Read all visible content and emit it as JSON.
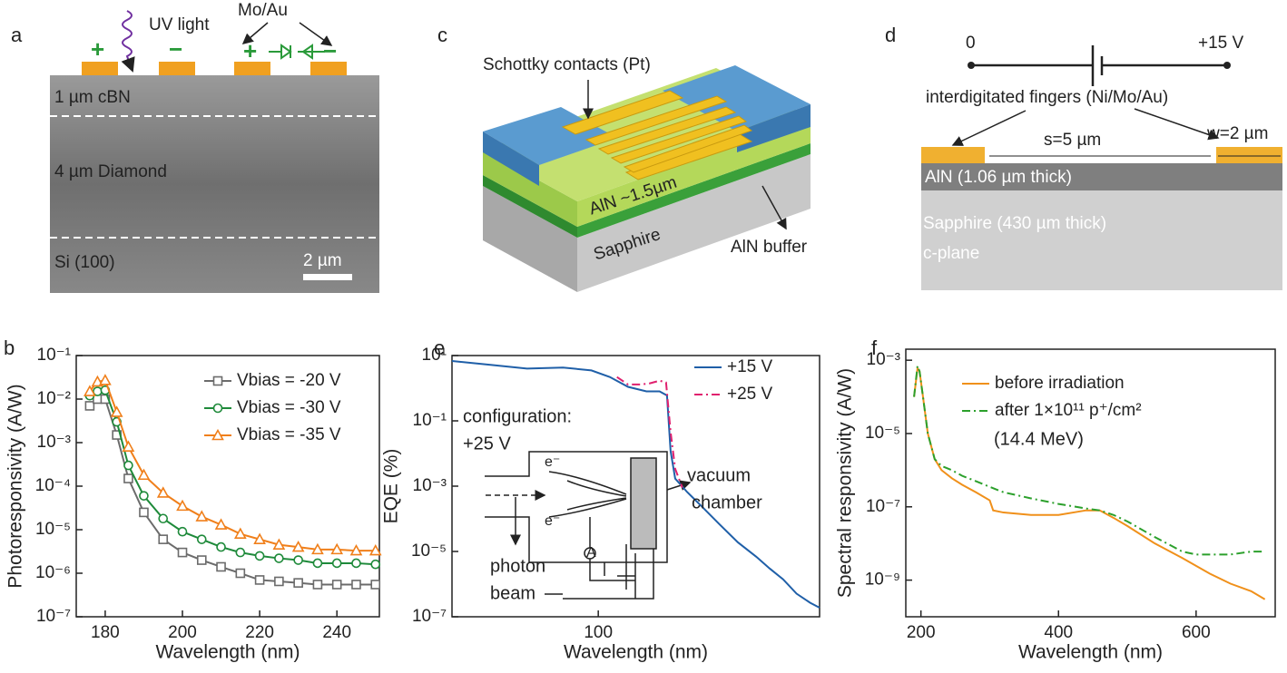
{
  "panel_a": {
    "label": "a",
    "texts": [
      "UV light",
      "Mo/Au",
      "+",
      "−",
      "+",
      "−",
      "1 µm cBN",
      "4 µm Diamond",
      "Si (100)",
      "2 µm"
    ]
  },
  "panel_c": {
    "label": "c",
    "texts": [
      "Schottky contacts (Pt)",
      "AlN ~1.5µm",
      "Sapphire",
      "AlN buffer"
    ]
  },
  "panel_d": {
    "label": "d",
    "texts": [
      "0",
      "+15 V",
      "interdigitated fingers (Ni/Mo/Au)",
      "s=5 µm",
      "w=2 µm",
      "AlN (1.06 µm thick)",
      "Sapphire (430 µm thick)",
      "c-plane"
    ]
  },
  "chart_data": [
    {
      "type": "line",
      "panel_label": "b",
      "x_label": "Wavelength (nm)",
      "y_label": "Photoresponsivity (A/W)",
      "yscale": "log",
      "legend": "upper right",
      "x": [
        176,
        178,
        180,
        183,
        186,
        190,
        195,
        200,
        205,
        210,
        215,
        220,
        225,
        230,
        235,
        240,
        245,
        250
      ],
      "series": [
        {
          "name": "Vbias = -20 V",
          "color": "#6b6b6b",
          "marker": "square",
          "values": [
            0.007,
            0.01,
            0.01,
            0.0015,
            0.00015,
            2.5e-05,
            6e-06,
            3e-06,
            2e-06,
            1.4e-06,
            1e-06,
            7e-07,
            6.5e-07,
            6e-07,
            5.5e-07,
            5.5e-07,
            5.5e-07,
            5.5e-07
          ]
        },
        {
          "name": "Vbias = -30 V",
          "color": "#1e8a3a",
          "marker": "circle",
          "values": [
            0.012,
            0.015,
            0.016,
            0.003,
            0.0003,
            6e-05,
            1.8e-05,
            9e-06,
            6e-06,
            4e-06,
            3e-06,
            2.5e-06,
            2.2e-06,
            2e-06,
            1.7e-06,
            1.7e-06,
            1.7e-06,
            1.6e-06
          ]
        },
        {
          "name": "Vbias = -35 V",
          "color": "#f07f1a",
          "marker": "triangle",
          "values": [
            0.015,
            0.025,
            0.027,
            0.005,
            0.0008,
            0.00018,
            7e-05,
            3.5e-05,
            2e-05,
            1.3e-05,
            8e-06,
            6e-06,
            4.5e-06,
            4e-06,
            3.5e-06,
            3.5e-06,
            3.3e-06,
            3.3e-06
          ]
        }
      ],
      "xlim": [
        172.5,
        251
      ],
      "ylim": [
        1e-07,
        0.1
      ],
      "xticks": [
        180,
        200,
        220,
        240
      ],
      "yticks": [
        {
          "value": 1e-07,
          "label": "10⁻⁷"
        },
        {
          "value": 1e-06,
          "label": "10⁻⁶"
        },
        {
          "value": 1e-05,
          "label": "10⁻⁵"
        },
        {
          "value": 0.0001,
          "label": "10⁻⁴"
        },
        {
          "value": 0.001,
          "label": "10⁻³"
        },
        {
          "value": 0.01,
          "label": "10⁻²"
        },
        {
          "value": 0.1,
          "label": "10⁻¹"
        }
      ]
    },
    {
      "type": "line",
      "panel_label": "e",
      "x_label": "Wavelength (nm)",
      "y_label": "EQE (%)",
      "xscale": "log",
      "yscale": "log",
      "legend": "upper right",
      "series": [
        {
          "name": "+15 V",
          "color": "#1f5fa8",
          "x": [
            40,
            50.9,
            64,
            80.2,
            95.8,
            107.5,
            120.5,
            135.2,
            146.8,
            153.8,
            157.3,
            161.9,
            174.5,
            190.5,
            213.7,
            239.8,
            269,
            292.7,
            318.3,
            346.3,
            376.8,
            400
          ],
          "values": [
            6.8,
            5.2,
            4,
            4.3,
            3.5,
            2.2,
            1.1,
            0.8,
            0.8,
            0.6,
            0.012,
            0.0017,
            0.00066,
            0.00025,
            6.8e-05,
            1.9e-05,
            6.9e-06,
            3e-06,
            1.4e-06,
            5.1e-07,
            2.7e-07,
            1.9e-07
          ]
        },
        {
          "name": "+25 V",
          "color": "#e0206e",
          "dash": "dashdot",
          "x": [
            112.4,
            120.5,
            130.8,
            137.8,
            146.8,
            152.9,
            157.3,
            161.9,
            169.3
          ],
          "values": [
            2.2,
            1.3,
            1.3,
            1.4,
            1.7,
            1.5,
            0.046,
            0.0034,
            0.0009
          ]
        }
      ],
      "xlim": [
        40,
        400
      ],
      "ylim": [
        1e-07,
        10
      ],
      "xticks": [
        100
      ],
      "yticks": [
        {
          "value": 1e-07,
          "label": "10⁻⁷"
        },
        {
          "value": 1e-05,
          "label": "10⁻⁵"
        },
        {
          "value": 0.001,
          "label": "10⁻³"
        },
        {
          "value": 0.1,
          "label": "10⁻¹"
        },
        {
          "value": 10,
          "label": "10¹"
        }
      ],
      "annotations": [
        "configuration:",
        "+25 V",
        "e⁻",
        "e⁻",
        "A",
        "vacuum",
        "chamber",
        "photon",
        "beam"
      ]
    },
    {
      "type": "line",
      "panel_label": "f",
      "x_label": "Wavelength (nm)",
      "y_label": "Spectral responsivity (A/W)",
      "yscale": "log",
      "legend": "upper right",
      "series": [
        {
          "name": "before irradiation",
          "color": "#f0901a",
          "x": [
            190,
            195,
            198,
            203,
            210,
            220,
            230,
            245,
            260,
            280,
            300,
            305,
            320,
            360,
            400,
            440,
            460,
            480,
            500,
            540,
            580,
            620,
            650,
            680,
            700
          ],
          "values": [
            0.0001,
            0.0006,
            0.0005,
            0.0001,
            1e-05,
            2e-06,
            1e-06,
            6e-07,
            4e-07,
            2.5e-07,
            1.5e-07,
            8e-08,
            7e-08,
            6e-08,
            6e-08,
            8e-08,
            8e-08,
            5e-08,
            3e-08,
            1e-08,
            4e-09,
            1.5e-09,
            8e-10,
            5e-10,
            3e-10
          ]
        },
        {
          "name": "after 1×10¹¹ p⁺/cm²",
          "color": "#2ca02c",
          "dash": "dashdot",
          "x": [
            190,
            195,
            198,
            203,
            210,
            220,
            230,
            245,
            260,
            280,
            300,
            320,
            360,
            400,
            440,
            460,
            480,
            500,
            540,
            580,
            600,
            620,
            650,
            680,
            700
          ],
          "values": [
            0.0001,
            0.0007,
            0.0005,
            0.0001,
            1e-05,
            2e-06,
            1.3e-06,
            1e-06,
            7e-07,
            5e-07,
            3.5e-07,
            2.5e-07,
            1.7e-07,
            1.2e-07,
            9e-08,
            8e-08,
            6e-08,
            4e-08,
            1.5e-08,
            6e-09,
            5e-09,
            5e-09,
            5e-09,
            6e-09,
            6e-09
          ]
        }
      ],
      "xlim": [
        178,
        715
      ],
      "ylim": [
        1e-10,
        0.002
      ],
      "xticks": [
        200,
        400,
        600
      ],
      "yticks": [
        {
          "value": 1e-09,
          "label": "10⁻⁹"
        },
        {
          "value": 1e-07,
          "label": "10⁻⁷"
        },
        {
          "value": 1e-05,
          "label": "10⁻⁵"
        },
        {
          "value": 0.001,
          "label": "10⁻³"
        }
      ],
      "annotations": [
        "(14.4 MeV)"
      ]
    }
  ]
}
